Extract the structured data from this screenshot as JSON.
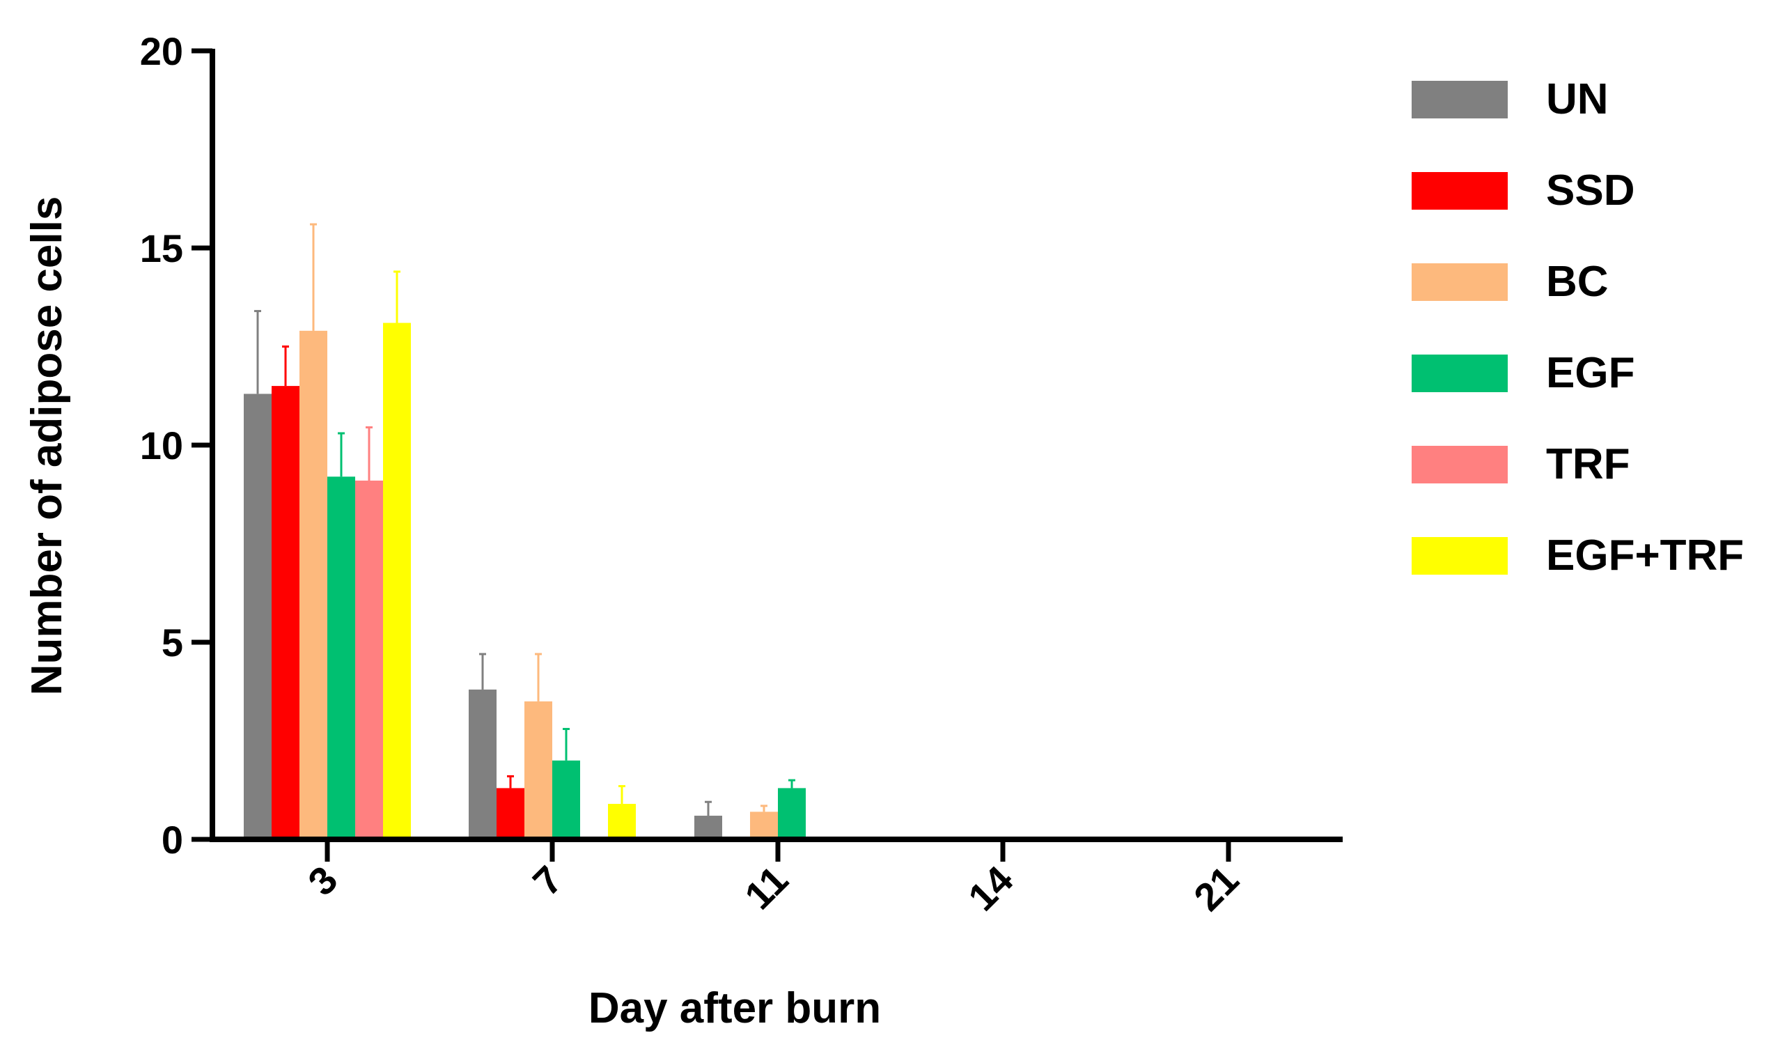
{
  "chart_data": {
    "type": "bar",
    "xlabel": "Day after burn",
    "ylabel": "Number of adipose cells",
    "categories": [
      "3",
      "7",
      "11",
      "14",
      "21"
    ],
    "ylim": [
      0,
      20
    ],
    "yticks": [
      "0",
      "5",
      "10",
      "15",
      "20"
    ],
    "grid": false,
    "legend_position": "right",
    "series": [
      {
        "name": "UN",
        "color": "#808080",
        "values": [
          11.3,
          3.8,
          0.6,
          0,
          0
        ],
        "errors": [
          2.1,
          0.9,
          0.35,
          0,
          0
        ]
      },
      {
        "name": "SSD",
        "color": "#ff0000",
        "values": [
          11.5,
          1.3,
          0,
          0,
          0
        ],
        "errors": [
          1.0,
          0.3,
          0,
          0,
          0
        ]
      },
      {
        "name": "BC",
        "color": "#fdb97d",
        "values": [
          12.9,
          3.5,
          0.7,
          0,
          0
        ],
        "errors": [
          2.7,
          1.2,
          0.15,
          0,
          0
        ]
      },
      {
        "name": "EGF",
        "color": "#00c071",
        "values": [
          9.2,
          2.0,
          1.3,
          0,
          0
        ],
        "errors": [
          1.1,
          0.8,
          0.2,
          0,
          0
        ]
      },
      {
        "name": "TRF",
        "color": "#ff8080",
        "values": [
          9.1,
          0,
          0,
          0,
          0
        ],
        "errors": [
          1.35,
          0,
          0,
          0,
          0
        ]
      },
      {
        "name": "EGF+TRF",
        "color": "#ffff00",
        "values": [
          13.1,
          0.9,
          0,
          0,
          0
        ],
        "errors": [
          1.3,
          0.45,
          0,
          0,
          0
        ]
      }
    ]
  }
}
